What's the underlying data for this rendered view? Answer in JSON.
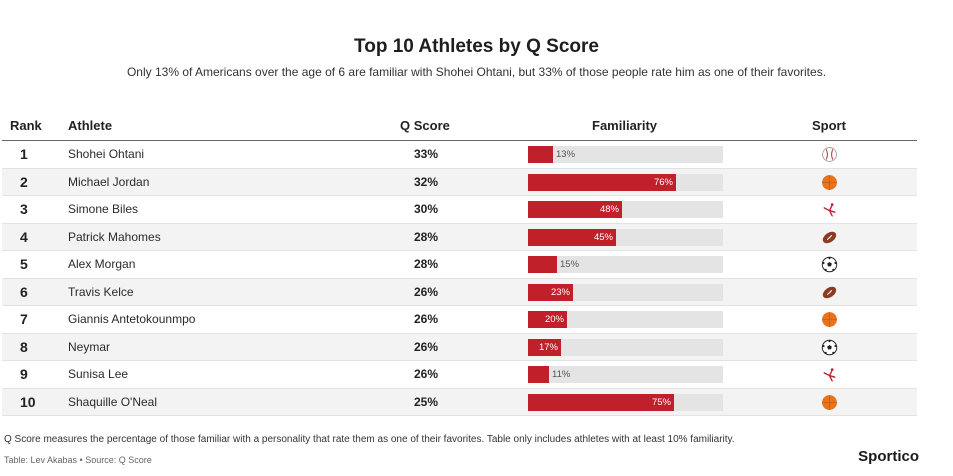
{
  "chart_data": {
    "type": "table",
    "title": "Top 10 Athletes by Q Score",
    "subtitle": "Only 13% of Americans over the age of 6 are familiar with Shohei Ohtani, but 33% of those people rate him as one of their favorites.",
    "columns": {
      "rank": "Rank",
      "athlete": "Athlete",
      "qscore": "Q Score",
      "familiarity": "Familiarity",
      "sport": "Sport"
    },
    "familiarity_range": [
      0,
      100
    ],
    "rows": [
      {
        "rank": "1",
        "athlete": "Shohei Ohtani",
        "qscore": "33%",
        "familiarity": 13,
        "familiarity_label": "13%",
        "sport_icon": "baseball-icon"
      },
      {
        "rank": "2",
        "athlete": "Michael Jordan",
        "qscore": "32%",
        "familiarity": 76,
        "familiarity_label": "76%",
        "sport_icon": "basketball-icon"
      },
      {
        "rank": "3",
        "athlete": "Simone Biles",
        "qscore": "30%",
        "familiarity": 48,
        "familiarity_label": "48%",
        "sport_icon": "gymnastics-icon"
      },
      {
        "rank": "4",
        "athlete": "Patrick Mahomes",
        "qscore": "28%",
        "familiarity": 45,
        "familiarity_label": "45%",
        "sport_icon": "football-icon"
      },
      {
        "rank": "5",
        "athlete": "Alex Morgan",
        "qscore": "28%",
        "familiarity": 15,
        "familiarity_label": "15%",
        "sport_icon": "soccer-ball-icon"
      },
      {
        "rank": "6",
        "athlete": "Travis Kelce",
        "qscore": "26%",
        "familiarity": 23,
        "familiarity_label": "23%",
        "sport_icon": "football-icon"
      },
      {
        "rank": "7",
        "athlete": "Giannis Antetokounmpo",
        "qscore": "26%",
        "familiarity": 20,
        "familiarity_label": "20%",
        "sport_icon": "basketball-icon"
      },
      {
        "rank": "8",
        "athlete": "Neymar",
        "qscore": "26%",
        "familiarity": 17,
        "familiarity_label": "17%",
        "sport_icon": "soccer-ball-icon"
      },
      {
        "rank": "9",
        "athlete": "Sunisa Lee",
        "qscore": "26%",
        "familiarity": 11,
        "familiarity_label": "11%",
        "sport_icon": "gymnastics-icon"
      },
      {
        "rank": "10",
        "athlete": "Shaquille O'Neal",
        "qscore": "25%",
        "familiarity": 75,
        "familiarity_label": "75%",
        "sport_icon": "basketball-icon"
      }
    ]
  },
  "footer": {
    "note": "Q Score measures the percentage of those familiar with a personality that rate them as one of their favorites. Table only includes athletes with at least 10% familiarity.",
    "credit": "Table: Lev Akabas • Source: Q Score",
    "brand": "Sportico"
  },
  "colors": {
    "bar": "#c0202a",
    "track": "#e4e4e4",
    "basketball": "#e8731c",
    "football": "#8a3b22"
  }
}
